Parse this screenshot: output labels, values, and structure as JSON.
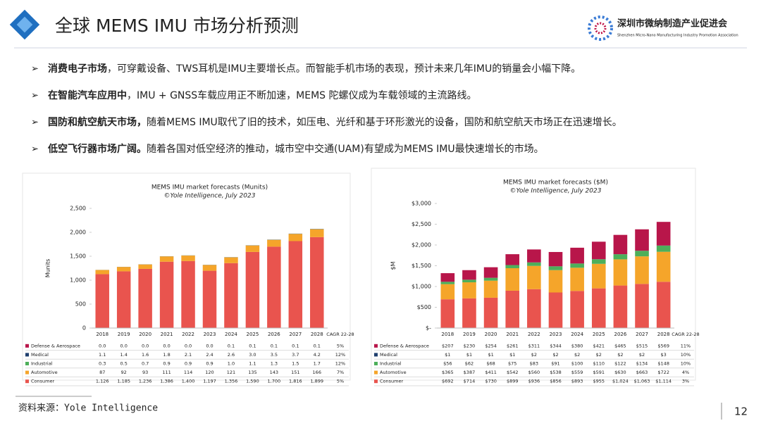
{
  "header": {
    "title": "全球 MEMS IMU 市场分析预测",
    "org_name": "深圳市微纳制造产业促进会",
    "org_name_en": "Shenzhen Micro-Nano Manufacturing Industry Promotion Association"
  },
  "bullets": [
    {
      "bold": "消费电子市场",
      "text": "，可穿戴设备、TWS耳机是IMU主要增长点。而智能手机市场的表现，预计未来几年IMU的销量会小幅下降。"
    },
    {
      "bold": "在智能汽车应用中",
      "text": "，IMU + GNSS车载应用正不断加速，MEMS 陀螺仪成为车载领域的主流路线。"
    },
    {
      "bold": "国防和航空航天市场，",
      "text": "随着MEMS IMU取代了旧的技术，如压电、光纤和基于环形激光的设备，国防和航空航天市场正在迅速增长。"
    },
    {
      "bold": "低空飞行器市场广阔。",
      "text": "随着各国对低空经济的推动，城市空中交通(UAM)有望成为MEMS IMU最快速增长的市场。"
    }
  ],
  "chart_data": [
    {
      "type": "stacked_bar",
      "title": "MEMS IMU market forecasts (Munits)",
      "subtitle": "©Yole Intelligence, July 2023",
      "y_label": "Munits",
      "categories": [
        "2018",
        "2019",
        "2020",
        "2021",
        "2022",
        "2023",
        "2024",
        "2025",
        "2026",
        "2027",
        "2028"
      ],
      "cagr_label": "CAGR 22-28",
      "ylim": [
        0,
        2500
      ],
      "yticks": [
        0,
        500,
        {
          "value": 1000,
          "label": "1,000"
        },
        {
          "value": 1500,
          "label": "1,500"
        },
        {
          "value": 2000,
          "label": "2,000"
        },
        {
          "value": 2500,
          "label": "2,500"
        }
      ],
      "series": [
        {
          "name": "Defense & Aerospace",
          "color": "#b8164a",
          "values": [
            0,
            0,
            0,
            0,
            0,
            0,
            0.1,
            0.1,
            0.1,
            0.1,
            0.1
          ],
          "value_labels": [
            "0.0",
            "0.0",
            "0.0",
            "0.0",
            "0.0",
            "0.0",
            "0.1",
            "0.1",
            "0.1",
            "0.1",
            "0.1"
          ],
          "cagr": "5%"
        },
        {
          "name": "Medical",
          "color": "#1f3f6e",
          "values": [
            1.1,
            1.4,
            1.6,
            1.8,
            2.1,
            2.4,
            2.6,
            3,
            3.5,
            3.7,
            4.2
          ],
          "value_labels": [
            "1.1",
            "1.4",
            "1.6",
            "1.8",
            "2.1",
            "2.4",
            "2.6",
            "3.0",
            "3.5",
            "3.7",
            "4.2"
          ],
          "cagr": "12%"
        },
        {
          "name": "Industrial",
          "color": "#4daf5a",
          "values": [
            0.3,
            0.5,
            0.7,
            0.9,
            0.9,
            0.9,
            1,
            1.1,
            1.3,
            1.5,
            1.7
          ],
          "value_labels": [
            "0.3",
            "0.5",
            "0.7",
            "0.9",
            "0.9",
            "0.9",
            "1.0",
            "1.1",
            "1.3",
            "1.5",
            "1.7"
          ],
          "cagr": "12%"
        },
        {
          "name": "Automotive",
          "color": "#f5a52a",
          "values": [
            87,
            92,
            93,
            111,
            114,
            120,
            121,
            135,
            143,
            151,
            166
          ],
          "cagr": "7%"
        },
        {
          "name": "Consumer",
          "color": "#e9544e",
          "values": [
            1126,
            1185,
            1236,
            1386,
            1400,
            1197,
            1356,
            1590,
            1700,
            1816,
            1899
          ],
          "value_labels": [
            "1,126",
            "1,185",
            "1,236",
            "1,386",
            "1,400",
            "1,197",
            "1,356",
            "1,590",
            "1,700",
            "1,816",
            "1,899"
          ],
          "cagr": "5%"
        }
      ]
    },
    {
      "type": "stacked_bar",
      "title": "MEMS IMU market forecasts ($M)",
      "subtitle": "©Yole Intelligence, July 2023",
      "y_label": "$M",
      "categories": [
        "2018",
        "2019",
        "2020",
        "2021",
        "2022",
        "2023",
        "2024",
        "2025",
        "2026",
        "2027",
        "2028"
      ],
      "cagr_label": "CAGR 22-28",
      "ylim": [
        0,
        3000
      ],
      "yticks": [
        {
          "value": 0,
          "label": "$-"
        },
        {
          "value": 500,
          "label": "$500"
        },
        {
          "value": 1000,
          "label": "$1,000"
        },
        {
          "value": 1500,
          "label": "$1,500"
        },
        {
          "value": 2000,
          "label": "$2,000"
        },
        {
          "value": 2500,
          "label": "$2,500"
        },
        {
          "value": 3000,
          "label": "$3,000"
        }
      ],
      "series": [
        {
          "name": "Defense & Aerospace",
          "color": "#b8164a",
          "values": [
            207,
            230,
            254,
            261,
            311,
            344,
            380,
            421,
            465,
            515,
            569
          ],
          "value_labels": [
            "$207",
            "$230",
            "$254",
            "$261",
            "$311",
            "$344",
            "$380",
            "$421",
            "$465",
            "$515",
            "$569"
          ],
          "cagr": "11%"
        },
        {
          "name": "Medical",
          "color": "#1f3f6e",
          "values": [
            1,
            1,
            1,
            1,
            2,
            2,
            2,
            2,
            2,
            2,
            3
          ],
          "value_labels": [
            "$1",
            "$1",
            "$1",
            "$1",
            "$2",
            "$2",
            "$2",
            "$2",
            "$2",
            "$2",
            "$3"
          ],
          "cagr": "10%"
        },
        {
          "name": "Industrial",
          "color": "#4daf5a",
          "values": [
            56,
            62,
            68,
            75,
            83,
            91,
            100,
            110,
            122,
            134,
            148
          ],
          "value_labels": [
            "$56",
            "$62",
            "$68",
            "$75",
            "$83",
            "$91",
            "$100",
            "$110",
            "$122",
            "$134",
            "$148"
          ],
          "cagr": "10%"
        },
        {
          "name": "Automotive",
          "color": "#f5a52a",
          "values": [
            365,
            387,
            411,
            542,
            560,
            538,
            559,
            591,
            630,
            663,
            722
          ],
          "value_labels": [
            "$365",
            "$387",
            "$411",
            "$542",
            "$560",
            "$538",
            "$559",
            "$591",
            "$630",
            "$663",
            "$722"
          ],
          "cagr": "4%"
        },
        {
          "name": "Consumer",
          "color": "#e9544e",
          "values": [
            692,
            714,
            730,
            899,
            936,
            856,
            893,
            955,
            1024,
            1063,
            1114
          ],
          "value_labels": [
            "$692",
            "$714",
            "$730",
            "$899",
            "$936",
            "$856",
            "$893",
            "$955",
            "$1,024",
            "$1,063",
            "$1,114"
          ],
          "cagr": "3%"
        }
      ]
    }
  ],
  "footer": {
    "source": "资料来源：Yole Intelligence",
    "page": "12"
  }
}
